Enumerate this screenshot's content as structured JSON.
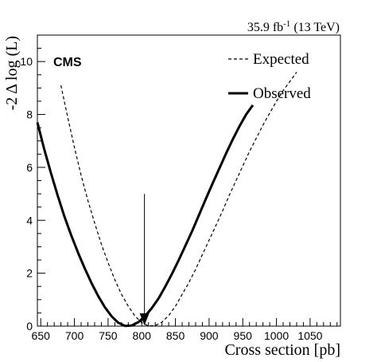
{
  "chart_data": {
    "type": "line",
    "lumi_text": {
      "main": "35.9 fb",
      "sup": "-1",
      "rest": " (13 TeV)"
    },
    "experiment_label": "CMS",
    "xlabel": "Cross section [pb]",
    "ylabel": "-2 Δ log (L)",
    "xlim": [
      645,
      1095
    ],
    "ylim": [
      0,
      11
    ],
    "xticks": [
      650,
      700,
      750,
      800,
      850,
      900,
      950,
      1000,
      1050
    ],
    "yticks": [
      0,
      2,
      4,
      6,
      8,
      10
    ],
    "legend_position": "top-right",
    "series": [
      {
        "name": "Expected",
        "style": "dashed",
        "color": "#000000",
        "x": [
          680,
          690,
          700,
          710,
          720,
          730,
          740,
          750,
          760,
          770,
          780,
          790,
          800,
          810,
          820,
          830,
          840,
          850,
          860,
          870,
          880,
          890,
          900,
          910,
          920,
          930,
          940,
          950,
          960,
          970,
          980,
          990,
          1000,
          1010,
          1020,
          1030
        ],
        "y": [
          9.1,
          7.9,
          6.75,
          5.7,
          4.75,
          3.9,
          3.1,
          2.4,
          1.75,
          1.2,
          0.75,
          0.38,
          0.13,
          0.01,
          0.02,
          0.15,
          0.4,
          0.75,
          1.2,
          1.65,
          2.15,
          2.7,
          3.25,
          3.8,
          4.35,
          4.95,
          5.5,
          6.05,
          6.6,
          7.1,
          7.6,
          8.05,
          8.5,
          8.9,
          9.25,
          9.6
        ]
      },
      {
        "name": "Observed",
        "style": "solid",
        "color": "#000000",
        "x": [
          645,
          655,
          665,
          675,
          685,
          695,
          705,
          715,
          725,
          735,
          745,
          755,
          765,
          775,
          785,
          795,
          805,
          815,
          825,
          835,
          845,
          855,
          865,
          875,
          885,
          895,
          905,
          915,
          925,
          935,
          945,
          955,
          965
        ],
        "y": [
          7.7,
          6.7,
          5.8,
          4.95,
          4.15,
          3.45,
          2.8,
          2.2,
          1.65,
          1.15,
          0.72,
          0.38,
          0.13,
          0.01,
          0.02,
          0.15,
          0.38,
          0.68,
          1.05,
          1.5,
          1.98,
          2.5,
          3.05,
          3.6,
          4.2,
          4.8,
          5.38,
          5.95,
          6.52,
          7.05,
          7.55,
          8.0,
          8.35
        ]
      }
    ],
    "annotation": {
      "type": "arrow",
      "x": 804,
      "y_top": 5.0,
      "y_bottom": 0
    }
  }
}
